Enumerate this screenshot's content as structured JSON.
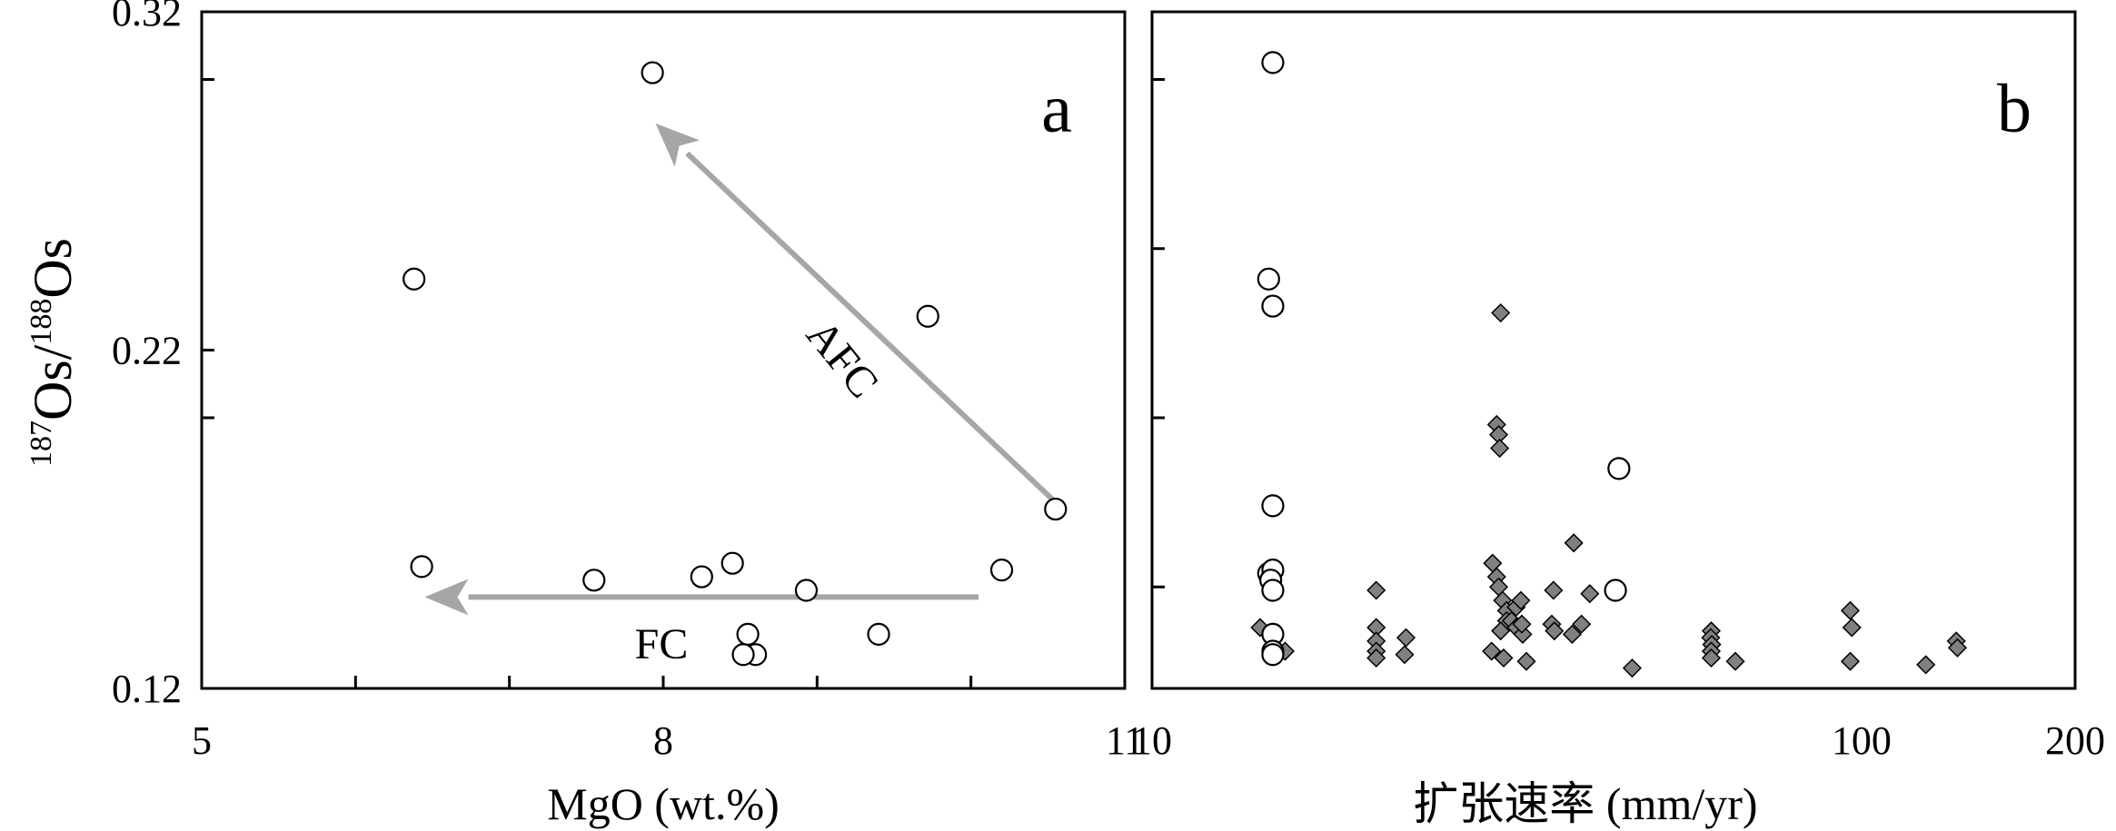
{
  "chart_data": [
    {
      "type": "scatter",
      "panel_label": "a",
      "xlabel": "MgO (wt.%)",
      "ylabel": {
        "sup1": "187",
        "main1": "Os/",
        "sup2": "188",
        "main2": "Os"
      },
      "xlim": [
        5,
        11
      ],
      "ylim": [
        0.12,
        0.32
      ],
      "xticks_labeled": [
        "5",
        "8",
        "11"
      ],
      "xtick_values_labeled": [
        5,
        8,
        11
      ],
      "xtick_values_minor": [
        6,
        7,
        9,
        10
      ],
      "yticks_labeled": [
        "0.32",
        "0.22",
        "0.12"
      ],
      "ytick_values_labeled": [
        0.32,
        0.22,
        0.12
      ],
      "ytick_values_minor": [
        0.3,
        0.2
      ],
      "grid": false,
      "series": [
        {
          "marker": "open-circle",
          "points": [
            [
              7.93,
              0.302
            ],
            [
              6.38,
              0.241
            ],
            [
              9.72,
              0.23
            ],
            [
              10.55,
              0.173
            ],
            [
              6.43,
              0.156
            ],
            [
              7.55,
              0.152
            ],
            [
              8.25,
              0.153
            ],
            [
              8.45,
              0.157
            ],
            [
              8.93,
              0.149
            ],
            [
              10.2,
              0.155
            ],
            [
              8.55,
              0.136
            ],
            [
              8.6,
              0.13
            ],
            [
              8.52,
              0.13
            ],
            [
              9.4,
              0.136
            ]
          ]
        }
      ],
      "annotations": [
        {
          "text": "AFC",
          "from": [
            10.55,
            0.175
          ],
          "to": [
            7.95,
            0.287
          ],
          "rotation": 51
        },
        {
          "text": "FC",
          "from": [
            10.05,
            0.147
          ],
          "to": [
            6.45,
            0.147
          ]
        }
      ],
      "arrow_color": "#a6a6a6"
    },
    {
      "type": "scatter",
      "panel_label": "b",
      "xlabel": "扩张速率 (mm/yr)",
      "xscale": "log",
      "xlim": [
        10,
        200
      ],
      "ylim": [
        0.12,
        0.32
      ],
      "xticks_labeled": [
        "10",
        "100",
        "200"
      ],
      "xtick_values_labeled": [
        10,
        100,
        200
      ],
      "ytick_values_minor": [
        0.3,
        0.25,
        0.2,
        0.15
      ],
      "grid": false,
      "series": [
        {
          "marker": "open-circle",
          "points": [
            [
              14.8,
              0.305
            ],
            [
              14.6,
              0.241
            ],
            [
              14.8,
              0.233
            ],
            [
              14.8,
              0.174
            ],
            [
              45.5,
              0.185
            ],
            [
              14.6,
              0.154
            ],
            [
              14.8,
              0.155
            ],
            [
              14.7,
              0.152
            ],
            [
              14.8,
              0.149
            ],
            [
              45,
              0.149
            ],
            [
              14.8,
              0.136
            ],
            [
              14.8,
              0.131
            ],
            [
              14.8,
              0.13
            ]
          ]
        },
        {
          "marker": "diamond",
          "color": "#808080",
          "points": [
            [
              14.2,
              0.138
            ],
            [
              15.4,
              0.131
            ],
            [
              20.7,
              0.149
            ],
            [
              20.7,
              0.138
            ],
            [
              20.7,
              0.134
            ],
            [
              20.7,
              0.131
            ],
            [
              20.7,
              0.129
            ],
            [
              22.8,
              0.135
            ],
            [
              22.7,
              0.13
            ],
            [
              31,
              0.231
            ],
            [
              30.6,
              0.198
            ],
            [
              30.8,
              0.195
            ],
            [
              30.9,
              0.191
            ],
            [
              30.2,
              0.157
            ],
            [
              30.6,
              0.153
            ],
            [
              30.8,
              0.15
            ],
            [
              31.2,
              0.146
            ],
            [
              31.6,
              0.143
            ],
            [
              31.6,
              0.14
            ],
            [
              32.1,
              0.14
            ],
            [
              32.6,
              0.138
            ],
            [
              33.3,
              0.136
            ],
            [
              32.6,
              0.144
            ],
            [
              33.2,
              0.139
            ],
            [
              33.1,
              0.146
            ],
            [
              30.1,
              0.131
            ],
            [
              31,
              0.137
            ],
            [
              31.3,
              0.129
            ],
            [
              33.7,
              0.128
            ],
            [
              36.8,
              0.149
            ],
            [
              36.6,
              0.139
            ],
            [
              36.9,
              0.137
            ],
            [
              39.1,
              0.136
            ],
            [
              40.3,
              0.139
            ],
            [
              41.4,
              0.148
            ],
            [
              39.3,
              0.163
            ],
            [
              47.5,
              0.126
            ],
            [
              61.4,
              0.137
            ],
            [
              61.3,
              0.135
            ],
            [
              61.5,
              0.133
            ],
            [
              61.4,
              0.131
            ],
            [
              61.4,
              0.129
            ],
            [
              66.4,
              0.128
            ],
            [
              96.4,
              0.143
            ],
            [
              96.9,
              0.138
            ],
            [
              96.4,
              0.128
            ],
            [
              123.2,
              0.127
            ],
            [
              136,
              0.134
            ],
            [
              136.5,
              0.132
            ]
          ]
        }
      ]
    }
  ]
}
